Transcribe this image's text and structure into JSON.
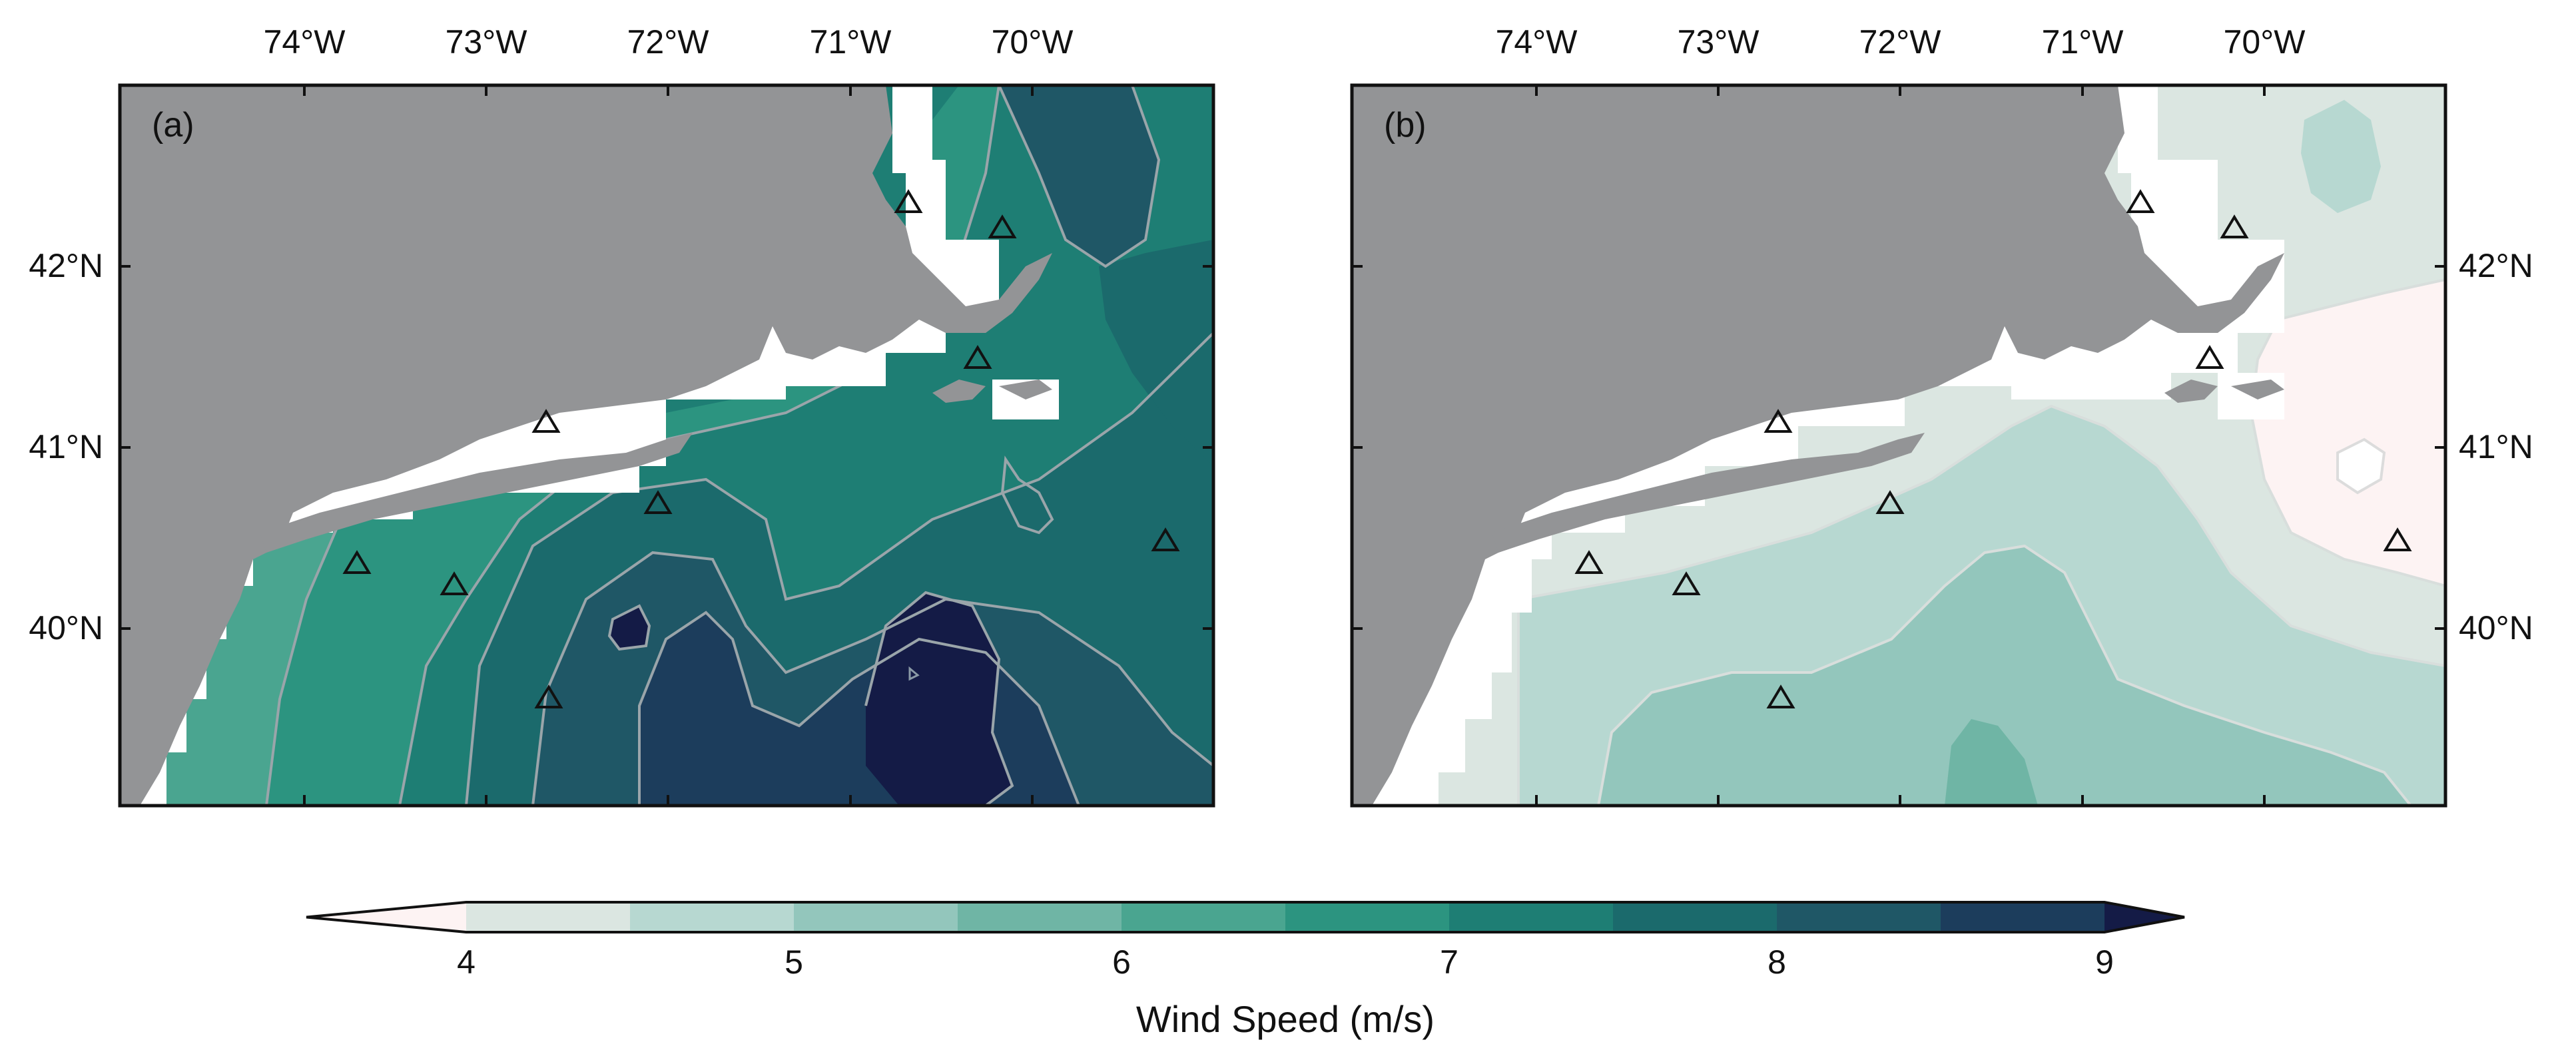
{
  "panels": [
    {
      "label": "(a)",
      "lon_ticks": [
        "74°W",
        "73°W",
        "72°W",
        "71°W",
        "70°W"
      ],
      "lat_ticks": [
        "42°N",
        "41°N",
        "40°N"
      ],
      "lat_side": "left"
    },
    {
      "label": "(b)",
      "lon_ticks": [
        "74°W",
        "73°W",
        "72°W",
        "71°W",
        "70°W"
      ],
      "lat_ticks": [
        "42°N",
        "41°N",
        "40°N"
      ],
      "lat_side": "right"
    }
  ],
  "colorbar": {
    "title": "Wind Speed (m/s)",
    "tick_labels": [
      "4",
      "5",
      "6",
      "7",
      "8",
      "9"
    ],
    "levels": [
      3.5,
      4,
      4.5,
      5,
      5.5,
      6,
      6.5,
      7,
      7.5,
      8,
      8.5,
      9,
      9.5
    ],
    "colors": [
      "#fdf3f3",
      "#dbe6e1",
      "#b7d8d1",
      "#93c6bc",
      "#6fb5a5",
      "#4aa590",
      "#2c9480",
      "#1e7e74",
      "#1b6a6c",
      "#1f5766",
      "#1c3d5c",
      "#141b46"
    ],
    "extend": "both"
  },
  "map_colors": {
    "land": "#939496",
    "mask": "#ffffff",
    "contour_line": "#9aa5aa",
    "station_outline": "#111111"
  }
}
